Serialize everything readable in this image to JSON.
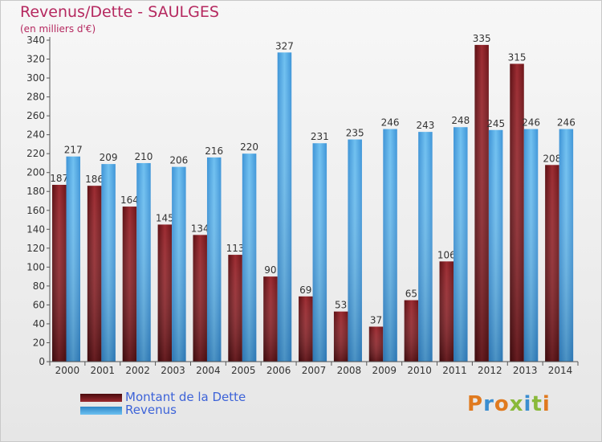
{
  "chart_data": {
    "type": "bar",
    "title": "Revenus/Dette - SAULGES",
    "subtitle": "(en milliers d'€)",
    "categories": [
      "2000",
      "2001",
      "2002",
      "2003",
      "2004",
      "2005",
      "2006",
      "2007",
      "2008",
      "2009",
      "2010",
      "2011",
      "2012",
      "2013",
      "2014"
    ],
    "series": [
      {
        "name": "Montant de la Dette",
        "color": "#7a1e22",
        "values": [
          187,
          186,
          164,
          145,
          134,
          113,
          90,
          69,
          53,
          37,
          65,
          106,
          335,
          315,
          208
        ]
      },
      {
        "name": "Revenus",
        "color": "#4aa3e0",
        "values": [
          217,
          209,
          210,
          206,
          216,
          220,
          327,
          231,
          235,
          246,
          243,
          248,
          245,
          246,
          246
        ]
      }
    ],
    "ylim": [
      0,
      340
    ],
    "yticks": [
      0,
      20,
      40,
      60,
      80,
      100,
      120,
      140,
      160,
      180,
      200,
      220,
      240,
      260,
      280,
      300,
      320,
      340
    ],
    "grid": false,
    "legend_position": "bottom-left"
  },
  "legend": {
    "debt_label": "Montant de la Dette",
    "revenue_label": "Revenus"
  },
  "logo": {
    "letters": [
      {
        "ch": "P",
        "color": "#e07a1f"
      },
      {
        "ch": "r",
        "color": "#3b8ed0"
      },
      {
        "ch": "o",
        "color": "#e07a1f"
      },
      {
        "ch": "x",
        "color": "#8ab93a"
      },
      {
        "ch": "i",
        "color": "#3b8ed0"
      },
      {
        "ch": "t",
        "color": "#8ab93a"
      },
      {
        "ch": "i",
        "color": "#e07a1f"
      }
    ]
  }
}
